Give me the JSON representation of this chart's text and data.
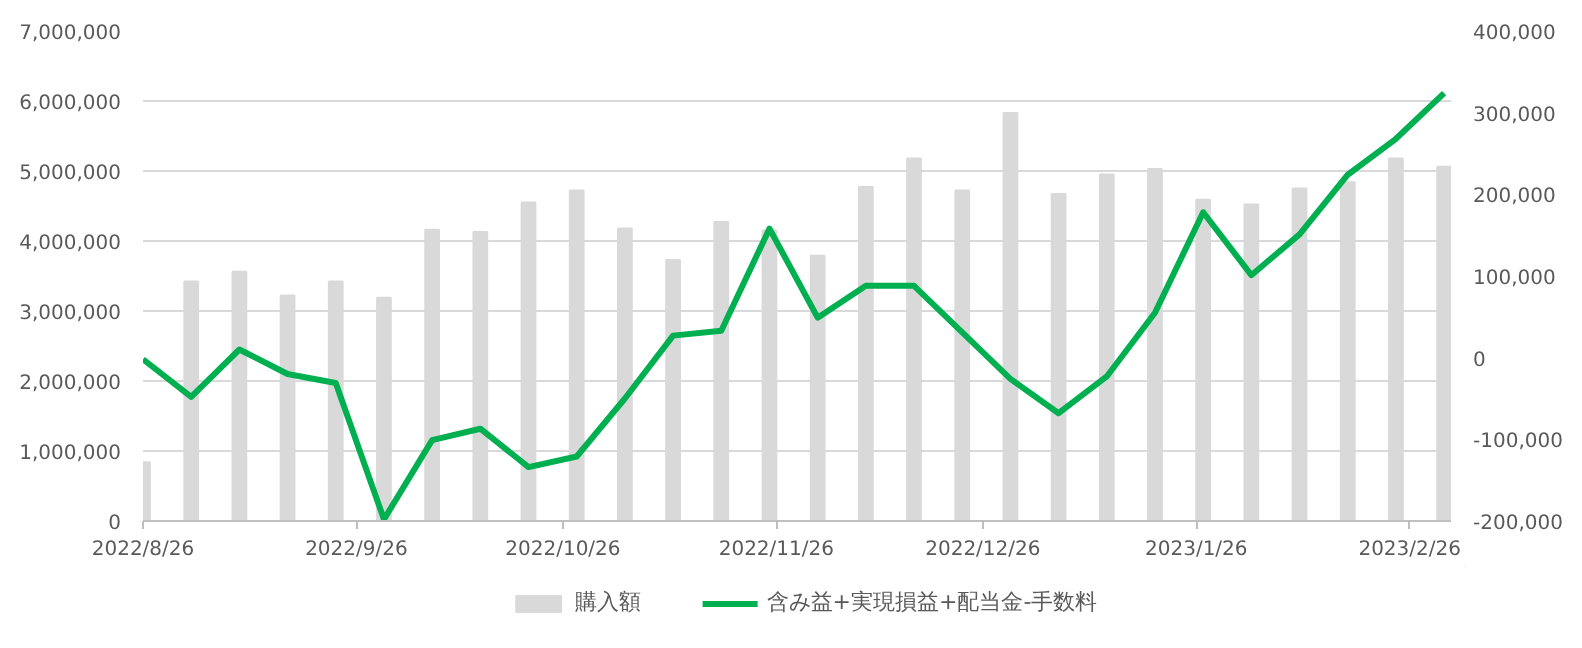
{
  "chart_data": {
    "type": "bar",
    "x": [
      "2022-08-26",
      "2022-09-02",
      "2022-09-09",
      "2022-09-16",
      "2022-09-23",
      "2022-09-30",
      "2022-10-07",
      "2022-10-14",
      "2022-10-21",
      "2022-10-28",
      "2022-11-04",
      "2022-11-11",
      "2022-11-18",
      "2022-11-25",
      "2022-12-02",
      "2022-12-09",
      "2022-12-16",
      "2022-12-23",
      "2022-12-30",
      "2023-01-06",
      "2023-01-13",
      "2023-01-20",
      "2023-01-27",
      "2023-02-03",
      "2023-02-10",
      "2023-02-17",
      "2023-02-24",
      "2023-03-03"
    ],
    "series": [
      {
        "name": "購入額",
        "color": "#d9d9d9",
        "values": [
          840000,
          3420000,
          3560000,
          3220000,
          3420000,
          3190000,
          4160000,
          4130000,
          4550000,
          4720000,
          4180000,
          3730000,
          4270000,
          4150000,
          3790000,
          4770000,
          5180000,
          4720000,
          5830000,
          4670000,
          4950000,
          5030000,
          4590000,
          4520000,
          4750000,
          4840000,
          5180000,
          5060000
        ]
      },
      {
        "name": "含み益+実現損益+配当金-手数料",
        "type": "line",
        "axis": "y2",
        "color": "#00b050",
        "values": [
          -2000,
          -48000,
          10000,
          -20000,
          -31000,
          -198000,
          -101000,
          -87000,
          -134000,
          -121000,
          -50000,
          27000,
          33000,
          158000,
          49000,
          88000,
          88000,
          31000,
          -26000,
          -68000,
          -23000,
          55000,
          178000,
          101000,
          151000,
          224000,
          268000,
          324000
        ]
      }
    ],
    "xlim": [
      "2022-08-26",
      "2023-03-04"
    ],
    "xticks": [
      {
        "value": "2022-08-26",
        "label": "2022/8/26"
      },
      {
        "value": "2022-09-26",
        "label": "2022/9/26"
      },
      {
        "value": "2022-10-26",
        "label": "2022/10/26"
      },
      {
        "value": "2022-11-26",
        "label": "2022/11/26"
      },
      {
        "value": "2022-12-26",
        "label": "2022/12/26"
      },
      {
        "value": "2023-01-26",
        "label": "2023/1/26"
      },
      {
        "value": "2023-02-26",
        "label": "2023/2/26"
      }
    ],
    "ylim": [
      0,
      7000000
    ],
    "yticks": [
      {
        "value": 0,
        "label": "0"
      },
      {
        "value": 1000000,
        "label": "1,000,000"
      },
      {
        "value": 2000000,
        "label": "2,000,000"
      },
      {
        "value": 3000000,
        "label": "3,000,000"
      },
      {
        "value": 4000000,
        "label": "4,000,000"
      },
      {
        "value": 5000000,
        "label": "5,000,000"
      },
      {
        "value": 6000000,
        "label": "6,000,000"
      },
      {
        "value": 7000000,
        "label": "7,000,000"
      }
    ],
    "y2lim": [
      -200000,
      400000
    ],
    "y2ticks": [
      {
        "value": -200000,
        "label": "-200,000"
      },
      {
        "value": -100000,
        "label": "-100,000"
      },
      {
        "value": 0,
        "label": "0"
      },
      {
        "value": 100000,
        "label": "100,000"
      },
      {
        "value": 200000,
        "label": "200,000"
      },
      {
        "value": 300000,
        "label": "300,000"
      },
      {
        "value": 400000,
        "label": "400,000"
      }
    ],
    "grid": "y",
    "legend": "bottom"
  }
}
